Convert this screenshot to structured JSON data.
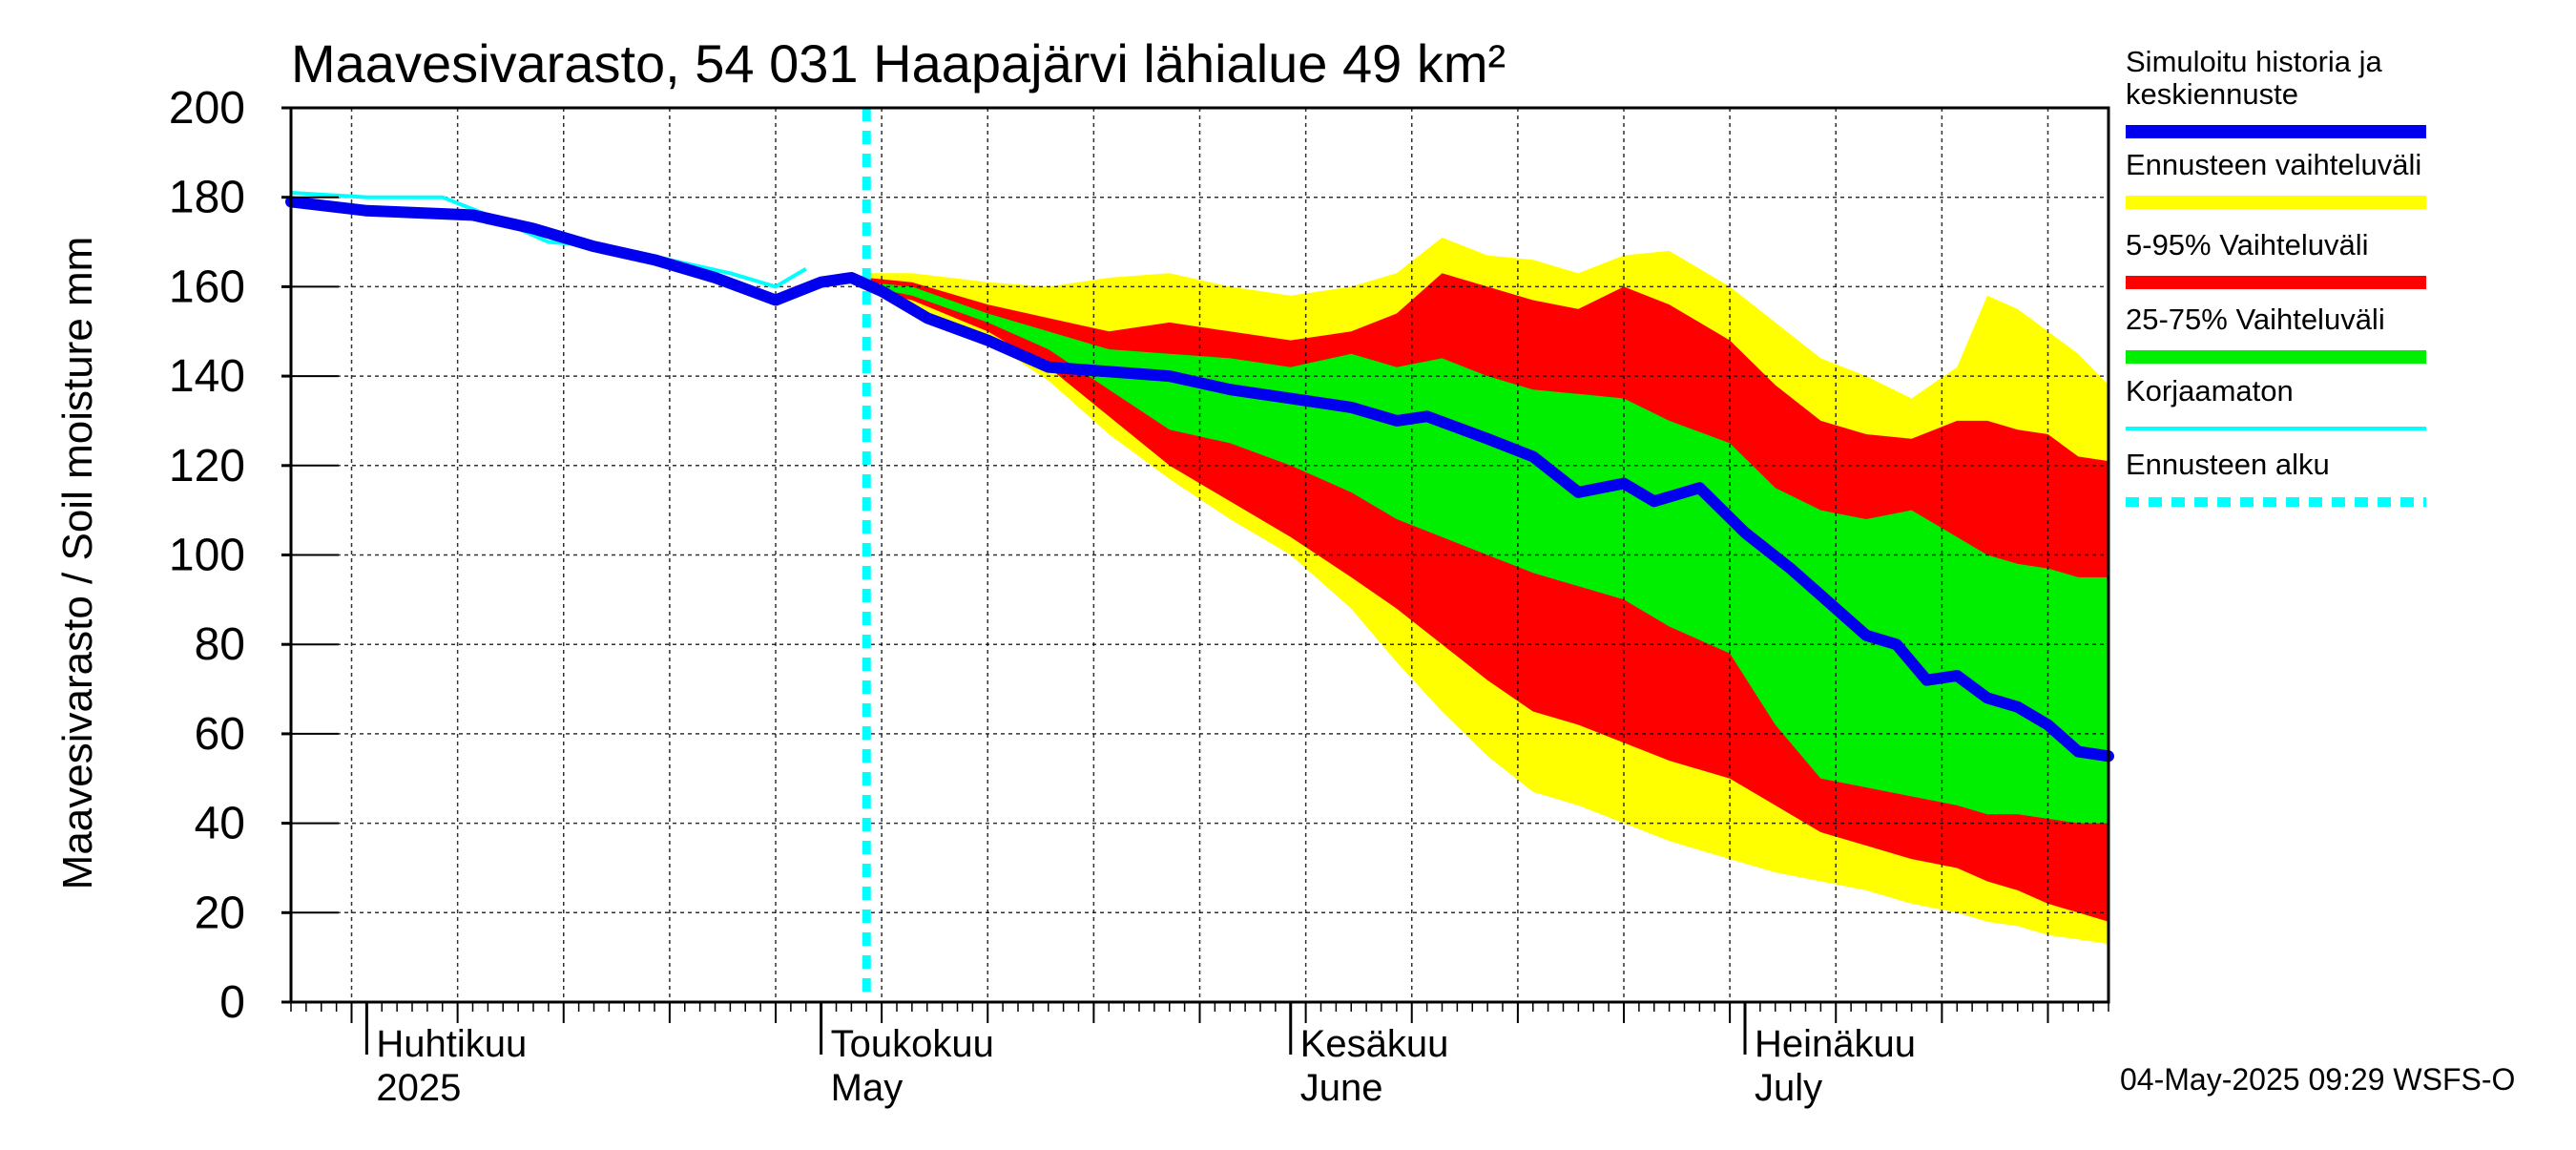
{
  "chart_data": {
    "type": "area",
    "title": "Maavesivarasto, 54 031 Haapajärvi lähialue 49 km²",
    "ylabel": "Maavesivarasto / Soil moisture   mm",
    "ylim": [
      0,
      200
    ],
    "yticks": [
      "0",
      "20",
      "40",
      "60",
      "80",
      "100",
      "120",
      "140",
      "160",
      "180",
      "200"
    ],
    "x_range": [
      "2025-03-27",
      "2025-07-25"
    ],
    "month_labels": [
      {
        "date": "2025-04-01",
        "line1": "Huhtikuu",
        "line2": "2025"
      },
      {
        "date": "2025-05-01",
        "line1": "Toukokuu",
        "line2": "May"
      },
      {
        "date": "2025-06-01",
        "line1": "Kesäkuu",
        "line2": "June"
      },
      {
        "date": "2025-07-01",
        "line1": "Heinäkuu",
        "line2": "July"
      }
    ],
    "forecast_start": "2025-05-04",
    "grid": true,
    "legend_position": "right",
    "legend": [
      {
        "label_lines": [
          "Simuloitu historia ja",
          "keskiennuste"
        ],
        "color": "#0000ee",
        "style": "thick"
      },
      {
        "label_lines": [
          "Ennusteen vaihteluväli"
        ],
        "color": "#ffff00",
        "style": "thick"
      },
      {
        "label_lines": [
          "5-95% Vaihteluväli"
        ],
        "color": "#ff0000",
        "style": "thick"
      },
      {
        "label_lines": [
          "25-75% Vaihteluväli"
        ],
        "color": "#00ee00",
        "style": "thick"
      },
      {
        "label_lines": [
          "Korjaamaton"
        ],
        "color": "#00ffff",
        "style": "thin"
      },
      {
        "label_lines": [
          "Ennusteen alku"
        ],
        "color": "#00ffff",
        "style": "dotted"
      }
    ],
    "series": [
      {
        "name": "Simuloitu historia ja keskiennuste",
        "color": "#0000ee",
        "x": [
          "2025-03-27",
          "2025-04-01",
          "2025-04-08",
          "2025-04-12",
          "2025-04-16",
          "2025-04-20",
          "2025-04-24",
          "2025-04-28",
          "2025-05-01",
          "2025-05-03",
          "2025-05-05",
          "2025-05-08",
          "2025-05-12",
          "2025-05-16",
          "2025-05-20",
          "2025-05-24",
          "2025-05-28",
          "2025-06-01",
          "2025-06-05",
          "2025-06-08",
          "2025-06-10",
          "2025-06-14",
          "2025-06-17",
          "2025-06-20",
          "2025-06-23",
          "2025-06-25",
          "2025-06-28",
          "2025-07-01",
          "2025-07-04",
          "2025-07-07",
          "2025-07-09",
          "2025-07-11",
          "2025-07-13",
          "2025-07-15",
          "2025-07-17",
          "2025-07-19",
          "2025-07-21",
          "2025-07-23",
          "2025-07-25"
        ],
        "values": [
          179,
          177,
          176,
          173,
          169,
          166,
          162,
          157,
          161,
          162,
          159,
          153,
          148,
          142,
          141,
          140,
          137,
          135,
          133,
          130,
          131,
          126,
          122,
          114,
          116,
          112,
          115,
          105,
          97,
          88,
          82,
          80,
          72,
          73,
          68,
          66,
          62,
          56,
          55
        ]
      },
      {
        "name": "Korjaamaton",
        "color": "#00ffff",
        "x": [
          "2025-03-27",
          "2025-04-01",
          "2025-04-06",
          "2025-04-09",
          "2025-04-13",
          "2025-04-17",
          "2025-04-21",
          "2025-04-25",
          "2025-04-28",
          "2025-04-30"
        ],
        "values": [
          181,
          180,
          180,
          176,
          170,
          169,
          166,
          163,
          160,
          164
        ]
      },
      {
        "name": "Ennusteen vaihteluväli",
        "color": "#ffff00",
        "x": [
          "2025-05-04",
          "2025-05-07",
          "2025-05-12",
          "2025-05-16",
          "2025-05-20",
          "2025-05-24",
          "2025-05-28",
          "2025-06-01",
          "2025-06-05",
          "2025-06-08",
          "2025-06-11",
          "2025-06-14",
          "2025-06-17",
          "2025-06-20",
          "2025-06-23",
          "2025-06-26",
          "2025-06-30",
          "2025-07-03",
          "2025-07-06",
          "2025-07-09",
          "2025-07-12",
          "2025-07-15",
          "2025-07-17",
          "2025-07-19",
          "2025-07-21",
          "2025-07-23",
          "2025-07-25"
        ],
        "upper": [
          163,
          163,
          161,
          160,
          162,
          163,
          160,
          158,
          160,
          163,
          171,
          167,
          166,
          163,
          167,
          168,
          160,
          152,
          144,
          140,
          135,
          142,
          158,
          155,
          150,
          145,
          138
        ],
        "lower": [
          159,
          156,
          148,
          139,
          127,
          117,
          108,
          100,
          88,
          76,
          65,
          55,
          47,
          44,
          40,
          36,
          32,
          29,
          27,
          25,
          22,
          20,
          18,
          17,
          15,
          14,
          13
        ]
      },
      {
        "name": "5-95% Vaihteluväli",
        "color": "#ff0000",
        "x": [
          "2025-05-04",
          "2025-05-07",
          "2025-05-12",
          "2025-05-16",
          "2025-05-20",
          "2025-05-24",
          "2025-05-28",
          "2025-06-01",
          "2025-06-05",
          "2025-06-08",
          "2025-06-11",
          "2025-06-14",
          "2025-06-17",
          "2025-06-20",
          "2025-06-23",
          "2025-06-26",
          "2025-06-30",
          "2025-07-03",
          "2025-07-06",
          "2025-07-09",
          "2025-07-12",
          "2025-07-15",
          "2025-07-17",
          "2025-07-19",
          "2025-07-21",
          "2025-07-23",
          "2025-07-25"
        ],
        "upper": [
          162,
          161,
          156,
          153,
          150,
          152,
          150,
          148,
          150,
          154,
          163,
          160,
          157,
          155,
          160,
          156,
          148,
          138,
          130,
          127,
          126,
          130,
          130,
          128,
          127,
          122,
          121
        ],
        "lower": [
          159,
          157,
          150,
          142,
          131,
          120,
          112,
          104,
          95,
          88,
          80,
          72,
          65,
          62,
          58,
          54,
          50,
          44,
          38,
          35,
          32,
          30,
          27,
          25,
          22,
          20,
          18
        ]
      },
      {
        "name": "25-75% Vaihteluväli",
        "color": "#00ee00",
        "x": [
          "2025-05-04",
          "2025-05-07",
          "2025-05-12",
          "2025-05-16",
          "2025-05-20",
          "2025-05-24",
          "2025-05-28",
          "2025-06-01",
          "2025-06-05",
          "2025-06-08",
          "2025-06-11",
          "2025-06-14",
          "2025-06-17",
          "2025-06-20",
          "2025-06-23",
          "2025-06-26",
          "2025-06-30",
          "2025-07-03",
          "2025-07-06",
          "2025-07-09",
          "2025-07-12",
          "2025-07-15",
          "2025-07-17",
          "2025-07-19",
          "2025-07-21",
          "2025-07-23",
          "2025-07-25"
        ],
        "upper": [
          161,
          160,
          154,
          150,
          146,
          145,
          144,
          142,
          145,
          142,
          144,
          140,
          137,
          136,
          135,
          130,
          125,
          115,
          110,
          108,
          110,
          104,
          100,
          98,
          97,
          95,
          95
        ],
        "lower": [
          160,
          158,
          152,
          146,
          137,
          128,
          125,
          120,
          114,
          108,
          104,
          100,
          96,
          93,
          90,
          84,
          78,
          62,
          50,
          48,
          46,
          44,
          42,
          42,
          41,
          40,
          40
        ]
      }
    ]
  },
  "footer": {
    "timestamp": "04-May-2025 09:29 WSFS-O"
  }
}
